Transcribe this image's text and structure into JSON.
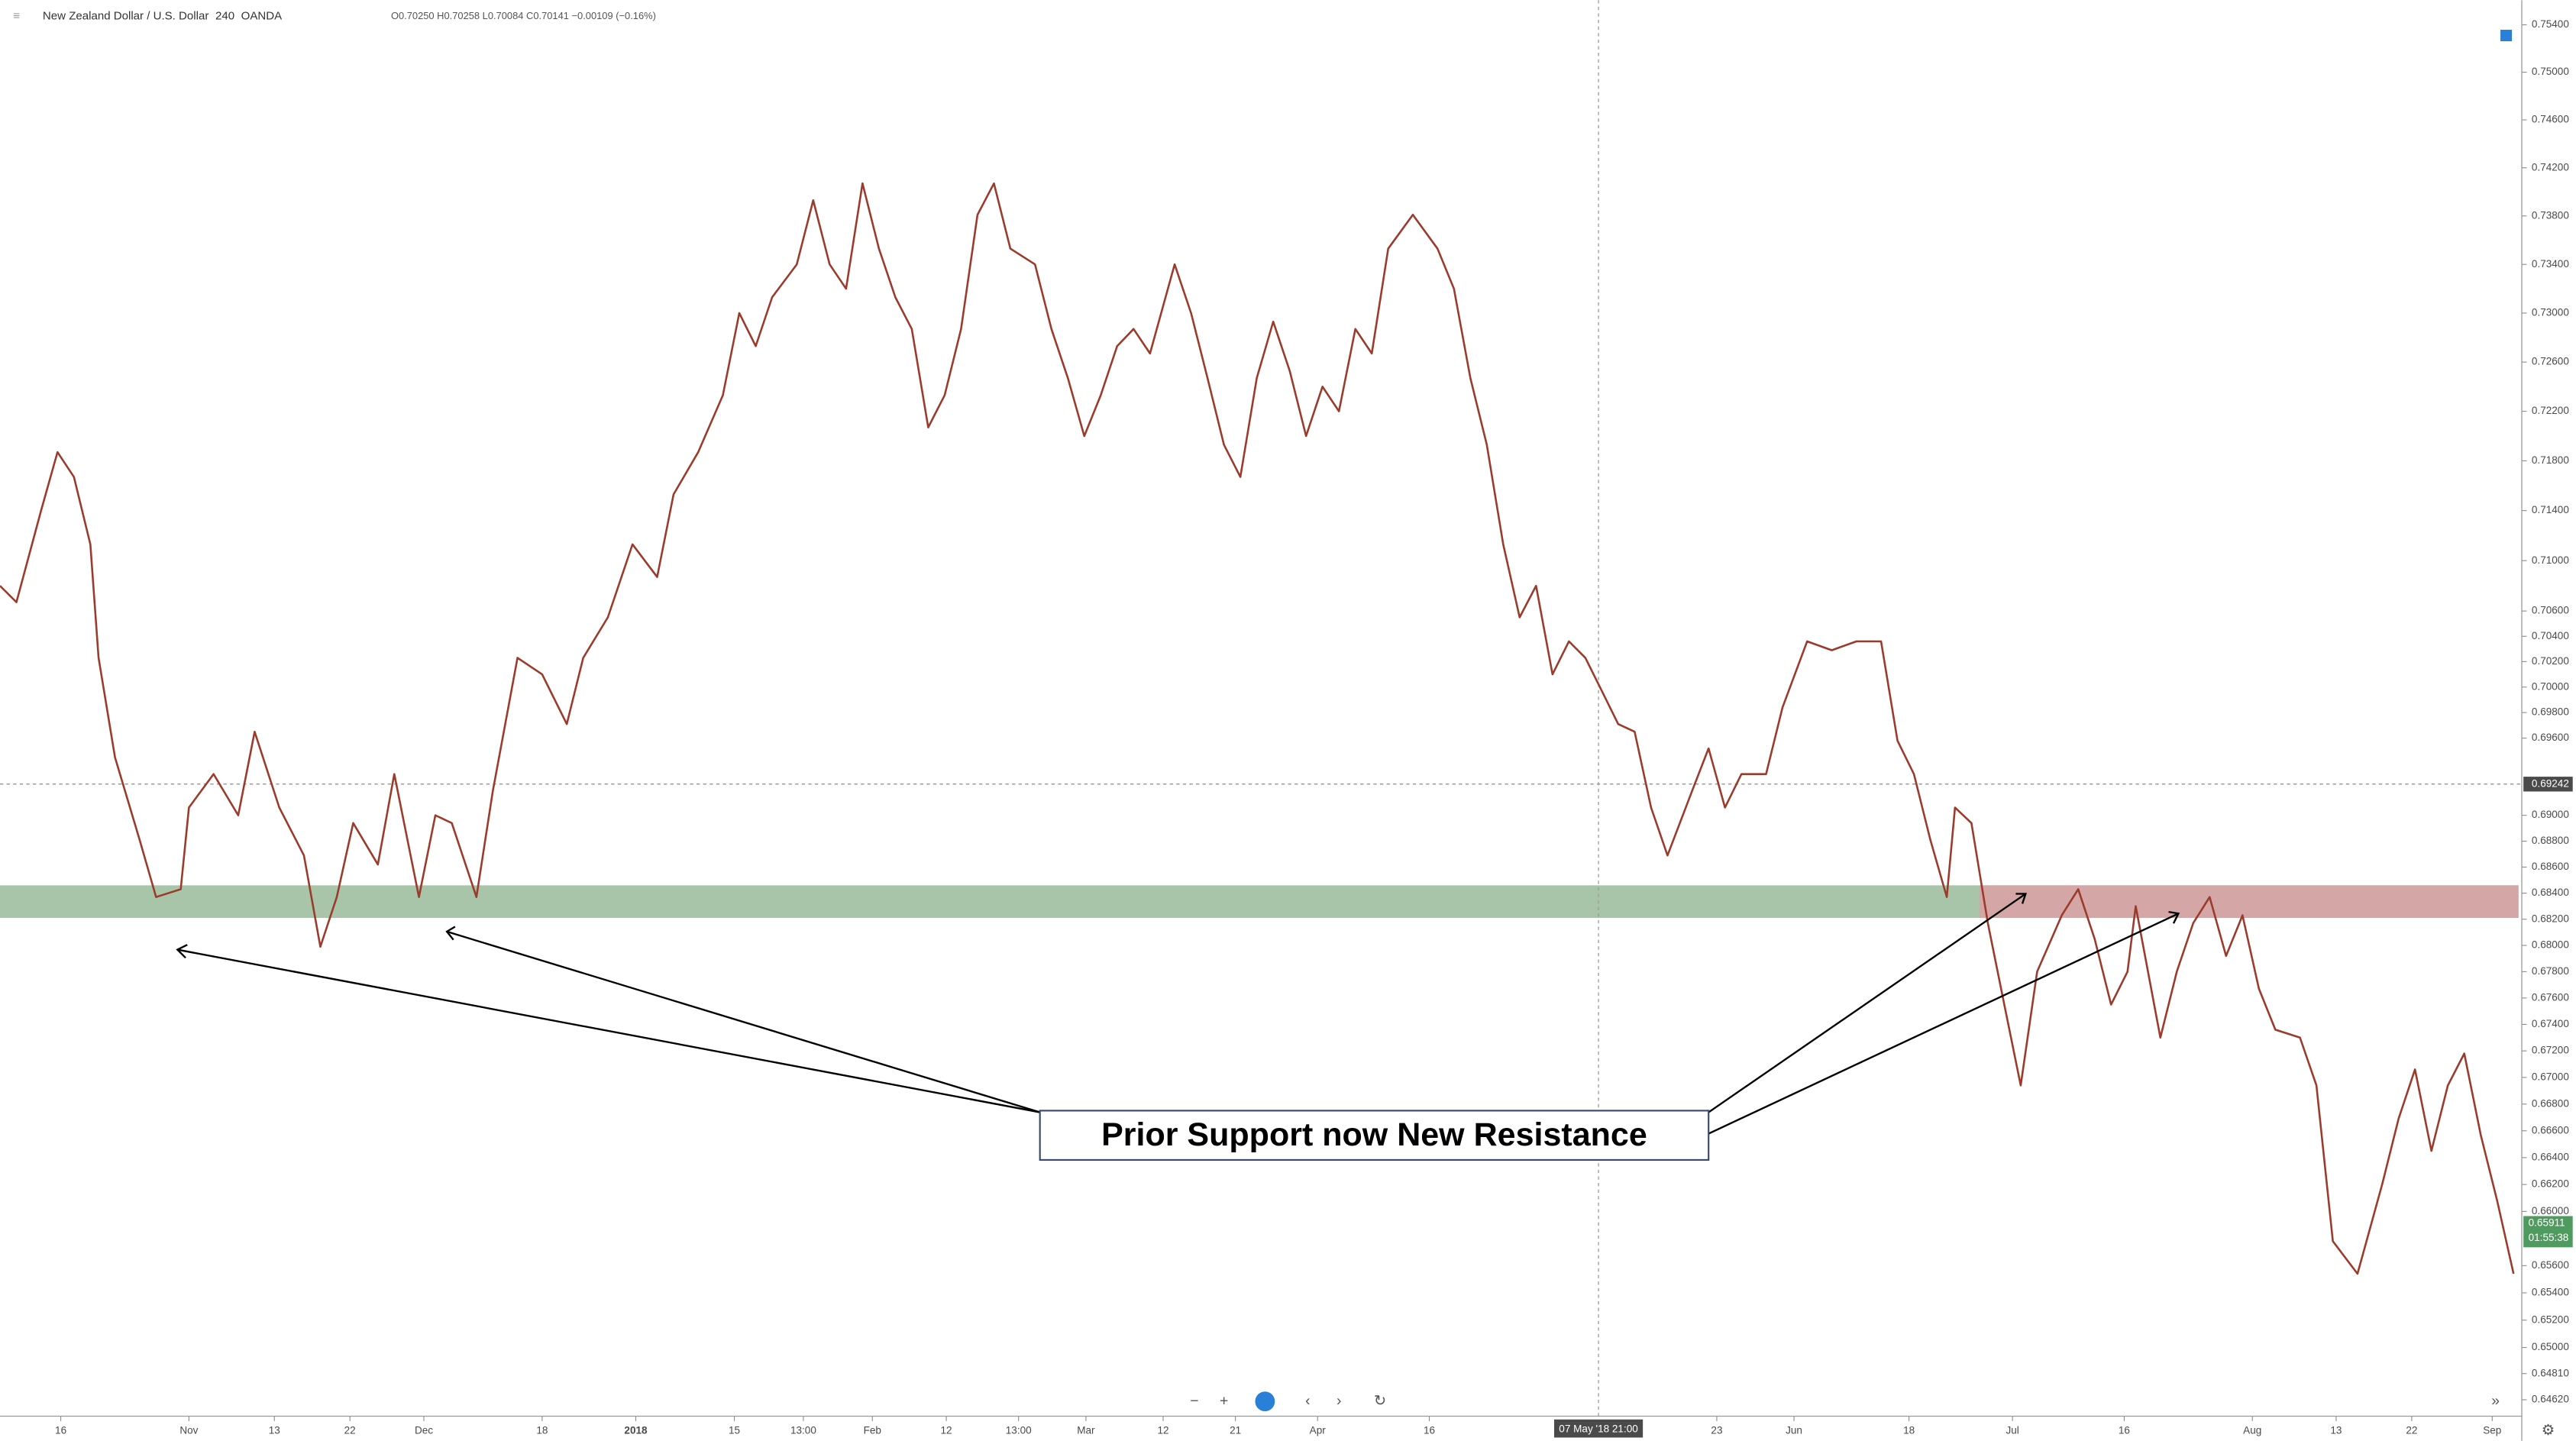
{
  "header": {
    "symbol": "New Zealand Dollar / U.S. Dollar",
    "interval": "240",
    "broker": "OANDA",
    "ohlc": "O0.70250 H0.70258 L0.70084 C0.70141 −0.00109 (−0.16%)"
  },
  "chart_data": {
    "type": "line",
    "log": true,
    "series": [
      {
        "name": "NZD/USD",
        "color": "#9b3b2c",
        "x": [
          0,
          10,
          25,
          35,
          45,
          55,
          60,
          70,
          85,
          95,
          110,
          115,
          130,
          145,
          155,
          170,
          185,
          195,
          205,
          215,
          230,
          240,
          255,
          265,
          275,
          290,
          300,
          315,
          330,
          345,
          355,
          370,
          385,
          400,
          410,
          425,
          440,
          450,
          460,
          470,
          485,
          495,
          505,
          515,
          525,
          535,
          545,
          555,
          565,
          575,
          585,
          595,
          605,
          615,
          630,
          640,
          650,
          660,
          670,
          680,
          690,
          700,
          715,
          725,
          735,
          745,
          755,
          765,
          775,
          785,
          795,
          805,
          815,
          825,
          835,
          845,
          860,
          875,
          885,
          895,
          905,
          915,
          925,
          935,
          945,
          955,
          965,
          975,
          985,
          995,
          1005,
          1015,
          1030,
          1040,
          1050,
          1060,
          1075,
          1085,
          1100,
          1115,
          1130,
          1145,
          1155,
          1165,
          1175,
          1185,
          1190,
          1200,
          1210,
          1220,
          1230,
          1240,
          1255,
          1265,
          1275,
          1285,
          1295,
          1300,
          1315,
          1325,
          1335,
          1345,
          1355,
          1365,
          1375,
          1385,
          1400,
          1410,
          1420,
          1435,
          1450,
          1460,
          1470,
          1480,
          1490,
          1500,
          1510,
          1520,
          1530
        ],
        "values": [
          0.708,
          0.7067,
          0.714,
          0.7187,
          0.7167,
          0.7113,
          0.7023,
          0.6945,
          0.6881,
          0.6837,
          0.6843,
          0.6906,
          0.6932,
          0.69,
          0.6965,
          0.6906,
          0.6869,
          0.6799,
          0.6837,
          0.6894,
          0.6862,
          0.6932,
          0.6837,
          0.69,
          0.6894,
          0.6837,
          0.6919,
          0.7023,
          0.701,
          0.6971,
          0.7023,
          0.7055,
          0.7113,
          0.7087,
          0.7153,
          0.7187,
          0.7233,
          0.73,
          0.7273,
          0.7313,
          0.734,
          0.7393,
          0.734,
          0.732,
          0.7407,
          0.7353,
          0.7313,
          0.7287,
          0.7207,
          0.7233,
          0.7287,
          0.7381,
          0.7407,
          0.7353,
          0.734,
          0.7287,
          0.7247,
          0.72,
          0.7233,
          0.7273,
          0.7287,
          0.7267,
          0.734,
          0.73,
          0.7247,
          0.7193,
          0.7167,
          0.7247,
          0.7293,
          0.7253,
          0.72,
          0.724,
          0.722,
          0.7287,
          0.7267,
          0.7353,
          0.7381,
          0.7353,
          0.732,
          0.7247,
          0.7193,
          0.7113,
          0.7055,
          0.708,
          0.701,
          0.7036,
          0.7023,
          0.6997,
          0.6971,
          0.6965,
          0.6906,
          0.6869,
          0.6919,
          0.6952,
          0.6906,
          0.6932,
          0.6932,
          0.6984,
          0.7036,
          0.7029,
          0.7036,
          0.7036,
          0.6958,
          0.6932,
          0.6881,
          0.6837,
          0.6906,
          0.6894,
          0.6817,
          0.6755,
          0.6694,
          0.678,
          0.6823,
          0.6843,
          0.6805,
          0.6755,
          0.678,
          0.683,
          0.673,
          0.678,
          0.6817,
          0.6837,
          0.6792,
          0.6823,
          0.6767,
          0.6736,
          0.673,
          0.6694,
          0.6578,
          0.6554,
          0.662,
          0.6669,
          0.6706,
          0.6645,
          0.6694,
          0.6718,
          0.6657,
          0.6608,
          0.6554
        ]
      }
    ],
    "xlim": [
      0,
      1530
    ],
    "xticks": [
      {
        "value": 37,
        "label": "16"
      },
      {
        "value": 115,
        "label": "Nov"
      },
      {
        "value": 167,
        "label": "13"
      },
      {
        "value": 213,
        "label": "22"
      },
      {
        "value": 258,
        "label": "Dec"
      },
      {
        "value": 330,
        "label": "18"
      },
      {
        "value": 387,
        "label": "2018"
      },
      {
        "value": 447,
        "label": "15"
      },
      {
        "value": 489,
        "label": "13:00"
      },
      {
        "value": 531,
        "label": "Feb"
      },
      {
        "value": 576,
        "label": "12"
      },
      {
        "value": 620,
        "label": "13:00"
      },
      {
        "value": 661,
        "label": "Mar"
      },
      {
        "value": 708,
        "label": "12"
      },
      {
        "value": 752,
        "label": "21"
      },
      {
        "value": 802,
        "label": "Apr"
      },
      {
        "value": 870,
        "label": "16"
      },
      {
        "value": 1045,
        "label": "23"
      },
      {
        "value": 1092,
        "label": "Jun"
      },
      {
        "value": 1162,
        "label": "18"
      },
      {
        "value": 1225,
        "label": "Jul"
      },
      {
        "value": 1293,
        "label": "16"
      },
      {
        "value": 1371,
        "label": "Aug"
      },
      {
        "value": 1422,
        "label": "13"
      },
      {
        "value": 1468,
        "label": "22"
      },
      {
        "value": 1517,
        "label": "Sep"
      }
    ],
    "ylim": [
      0.6462,
      0.754
    ],
    "yticks": [
      {
        "value": 0.754,
        "label": "0.75400"
      },
      {
        "value": 0.75,
        "label": "0.75000"
      },
      {
        "value": 0.746,
        "label": "0.74600"
      },
      {
        "value": 0.742,
        "label": "0.74200"
      },
      {
        "value": 0.738,
        "label": "0.73800"
      },
      {
        "value": 0.734,
        "label": "0.73400"
      },
      {
        "value": 0.73,
        "label": "0.73000"
      },
      {
        "value": 0.726,
        "label": "0.72600"
      },
      {
        "value": 0.722,
        "label": "0.72200"
      },
      {
        "value": 0.718,
        "label": "0.71800"
      },
      {
        "value": 0.714,
        "label": "0.71400"
      },
      {
        "value": 0.71,
        "label": "0.71000"
      },
      {
        "value": 0.706,
        "label": "0.70600"
      },
      {
        "value": 0.704,
        "label": "0.70400"
      },
      {
        "value": 0.702,
        "label": "0.70200"
      },
      {
        "value": 0.7,
        "label": "0.70000"
      },
      {
        "value": 0.698,
        "label": "0.69800"
      },
      {
        "value": 0.696,
        "label": "0.69600"
      },
      {
        "value": 0.69,
        "label": "0.69000"
      },
      {
        "value": 0.688,
        "label": "0.68800"
      },
      {
        "value": 0.686,
        "label": "0.68600"
      },
      {
        "value": 0.684,
        "label": "0.68400"
      },
      {
        "value": 0.682,
        "label": "0.68200"
      },
      {
        "value": 0.68,
        "label": "0.68000"
      },
      {
        "value": 0.678,
        "label": "0.67800"
      },
      {
        "value": 0.676,
        "label": "0.67600"
      },
      {
        "value": 0.674,
        "label": "0.67400"
      },
      {
        "value": 0.672,
        "label": "0.67200"
      },
      {
        "value": 0.67,
        "label": "0.67000"
      },
      {
        "value": 0.668,
        "label": "0.66800"
      },
      {
        "value": 0.666,
        "label": "0.66600"
      },
      {
        "value": 0.664,
        "label": "0.66400"
      },
      {
        "value": 0.662,
        "label": "0.66200"
      },
      {
        "value": 0.66,
        "label": "0.66000"
      },
      {
        "value": 0.656,
        "label": "0.65600"
      },
      {
        "value": 0.654,
        "label": "0.65400"
      },
      {
        "value": 0.652,
        "label": "0.65200"
      },
      {
        "value": 0.65,
        "label": "0.65000"
      },
      {
        "value": 0.6481,
        "label": "0.64810"
      },
      {
        "value": 0.6462,
        "label": "0.64620"
      }
    ],
    "support_zone": {
      "range": [
        0.6821,
        0.6846
      ],
      "color": "#a9c5a9",
      "x": [
        0,
        1533
      ]
    },
    "resistance_zone": {
      "range": [
        0.6821,
        0.6846
      ],
      "color": "#d4a6a6",
      "x": [
        1205,
        1533
      ]
    },
    "reference_price": {
      "value": 0.69242,
      "label": "0.69242"
    },
    "last_price": {
      "value": 0.65911,
      "label": "0.65911",
      "timer": "01:55:38"
    },
    "crosshair": {
      "x": 973,
      "label": "07 May '18  21:00"
    },
    "annotation": "Prior Support now New Resistance"
  }
}
